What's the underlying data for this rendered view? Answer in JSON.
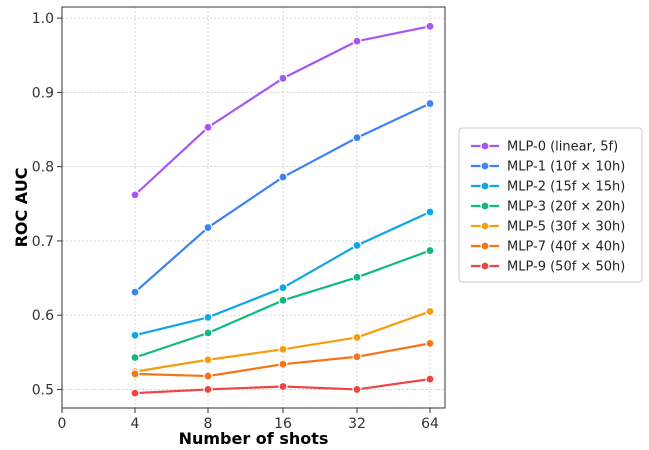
{
  "chart_data": {
    "type": "line",
    "title": "",
    "xlabel": "Number of shots",
    "ylabel": "ROC AUC",
    "x_ticks": [
      "0",
      "4",
      "8",
      "16",
      "32",
      "64"
    ],
    "x_tick_values": [
      0,
      4,
      8,
      16,
      32,
      64
    ],
    "x_scale": "log2-like (0 shown at left)",
    "y_ticks": [
      "0.5",
      "0.6",
      "0.7",
      "0.8",
      "0.9",
      "1.0"
    ],
    "y_tick_values": [
      0.5,
      0.6,
      0.7,
      0.8,
      0.9,
      1.0
    ],
    "ylim": [
      0.475,
      1.015
    ],
    "grid": true,
    "legend_position": "right",
    "x": [
      4,
      8,
      16,
      32,
      64
    ],
    "series": [
      {
        "name": "MLP-0 (linear, 5f)",
        "color": "#a855f7",
        "values": [
          0.762,
          0.853,
          0.919,
          0.969,
          0.989
        ]
      },
      {
        "name": "MLP-1 (10f × 10h)",
        "color": "#3b82f6",
        "values": [
          0.631,
          0.718,
          0.786,
          0.839,
          0.885
        ]
      },
      {
        "name": "MLP-2 (15f × 15h)",
        "color": "#0ea5e9",
        "values": [
          0.573,
          0.597,
          0.637,
          0.694,
          0.739
        ]
      },
      {
        "name": "MLP-3 (20f × 20h)",
        "color": "#10b981",
        "values": [
          0.543,
          0.576,
          0.62,
          0.651,
          0.687
        ]
      },
      {
        "name": "MLP-5 (30f × 30h)",
        "color": "#f59e0b",
        "values": [
          0.524,
          0.54,
          0.554,
          0.57,
          0.605
        ]
      },
      {
        "name": "MLP-7 (40f × 40h)",
        "color": "#f97316",
        "values": [
          0.521,
          0.518,
          0.534,
          0.544,
          0.562
        ]
      },
      {
        "name": "MLP-9 (50f × 50h)",
        "color": "#ef4444",
        "values": [
          0.495,
          0.5,
          0.504,
          0.5,
          0.514
        ]
      }
    ]
  }
}
